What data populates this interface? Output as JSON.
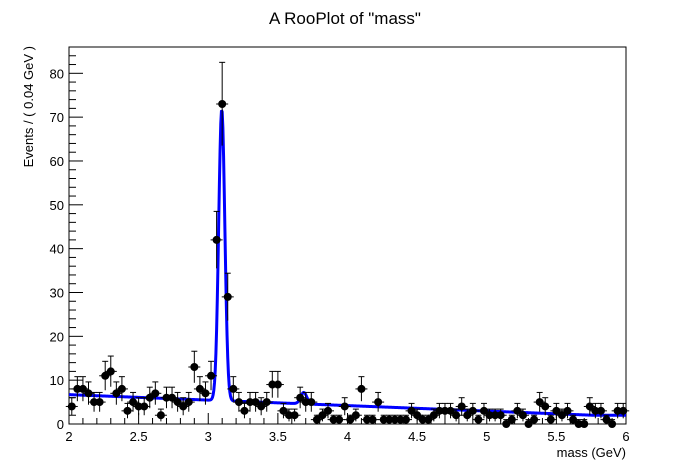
{
  "chart_data": {
    "type": "scatter",
    "title": "A RooPlot of \"mass\"",
    "xlabel": "mass (GeV)",
    "ylabel": "Events / ( 0.04 GeV )",
    "xlim": [
      2,
      6
    ],
    "ylim": [
      0,
      86
    ],
    "grid": false,
    "x_ticks": [
      2,
      2.5,
      3,
      3.5,
      4,
      4.5,
      5,
      5.5,
      6
    ],
    "x_tick_labels": [
      "2",
      "2.5",
      "3",
      "3.5",
      "4",
      "4.5",
      "5",
      "5.5",
      "6"
    ],
    "y_ticks": [
      0,
      10,
      20,
      30,
      40,
      50,
      60,
      70,
      80
    ],
    "y_tick_labels": [
      "0",
      "10",
      "20",
      "30",
      "40",
      "50",
      "60",
      "70",
      "80"
    ],
    "series": [
      {
        "kind": "data_points_with_errors",
        "color": "#000000",
        "x": [
          2.02,
          2.06,
          2.1,
          2.14,
          2.18,
          2.22,
          2.26,
          2.3,
          2.34,
          2.38,
          2.42,
          2.46,
          2.5,
          2.54,
          2.58,
          2.62,
          2.66,
          2.7,
          2.74,
          2.78,
          2.82,
          2.86,
          2.9,
          2.94,
          2.98,
          3.02,
          3.06,
          3.1,
          3.14,
          3.18,
          3.22,
          3.26,
          3.3,
          3.34,
          3.38,
          3.42,
          3.46,
          3.5,
          3.54,
          3.58,
          3.62,
          3.66,
          3.7,
          3.74,
          3.78,
          3.82,
          3.86,
          3.9,
          3.94,
          3.98,
          4.02,
          4.06,
          4.1,
          4.14,
          4.18,
          4.22,
          4.26,
          4.3,
          4.34,
          4.38,
          4.42,
          4.46,
          4.5,
          4.54,
          4.58,
          4.62,
          4.66,
          4.7,
          4.74,
          4.78,
          4.82,
          4.86,
          4.9,
          4.94,
          4.98,
          5.02,
          5.06,
          5.1,
          5.14,
          5.18,
          5.22,
          5.26,
          5.3,
          5.34,
          5.38,
          5.42,
          5.46,
          5.5,
          5.54,
          5.58,
          5.62,
          5.66,
          5.7,
          5.74,
          5.78,
          5.82,
          5.86,
          5.9,
          5.94,
          5.98
        ],
        "y": [
          4,
          8,
          8,
          7,
          5,
          5,
          11,
          12,
          7,
          8,
          3,
          5,
          4,
          4,
          6,
          7,
          2,
          6,
          6,
          5,
          4,
          5,
          13,
          8,
          7,
          11,
          42,
          73,
          29,
          8,
          5,
          3,
          5,
          5,
          4,
          5,
          9,
          9,
          3,
          2,
          2,
          6,
          5,
          5,
          1,
          2,
          3,
          1,
          1,
          4,
          1,
          2,
          8,
          1,
          1,
          5,
          1,
          1,
          1,
          1,
          1,
          3,
          2,
          1,
          1,
          2,
          3,
          3,
          3,
          2,
          4,
          2,
          3,
          1,
          3,
          2,
          2,
          2,
          0,
          1,
          3,
          2,
          0,
          1,
          5,
          4,
          1,
          3,
          2,
          3,
          1,
          0,
          0,
          4,
          3,
          3,
          1,
          0,
          3,
          3
        ],
        "y_err": [
          2,
          2.8,
          2.8,
          2.6,
          2.2,
          2.2,
          3.3,
          3.5,
          2.6,
          2.8,
          1.7,
          2.2,
          2,
          2,
          2.4,
          2.6,
          1.4,
          2.4,
          2.4,
          2.2,
          2,
          2.2,
          3.6,
          2.8,
          2.6,
          3.3,
          6.5,
          9.5,
          5.4,
          2.8,
          2.2,
          1.7,
          2.2,
          2.2,
          2,
          2.2,
          3,
          3,
          1.7,
          1.4,
          1.4,
          2.4,
          2.2,
          2.2,
          1,
          1.4,
          1.7,
          1,
          1,
          2,
          1,
          1.4,
          2.8,
          1,
          1,
          2.2,
          1,
          1,
          1,
          1,
          1,
          1.7,
          1.4,
          1,
          1,
          1.4,
          1.7,
          1.7,
          1.7,
          1.4,
          2,
          1.4,
          1.7,
          1,
          1.7,
          1.4,
          1.4,
          1.4,
          1,
          1,
          1.7,
          1.4,
          1,
          1,
          2.2,
          2,
          1,
          1.7,
          1.4,
          1.7,
          1,
          1,
          1,
          2,
          1.7,
          1.7,
          1,
          1,
          1.7,
          1.7
        ]
      },
      {
        "kind": "fit_curve",
        "color": "#0000ff",
        "model": {
          "background": {
            "at_x_start": 6.7,
            "slope_per_gev": -1.25,
            "floor": 2.0
          },
          "peaks": [
            {
              "mean": 3.097,
              "sigma": 0.022,
              "amplitude": 66.5
            },
            {
              "mean": 3.686,
              "sigma": 0.022,
              "amplitude": 2.6
            }
          ]
        }
      }
    ]
  }
}
